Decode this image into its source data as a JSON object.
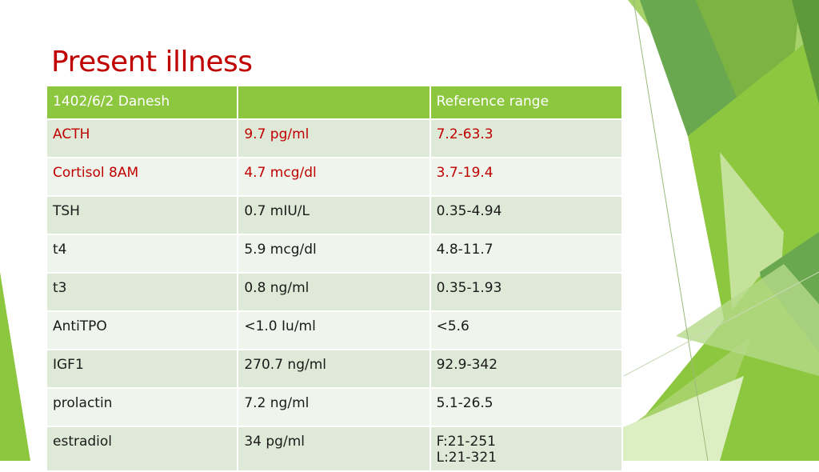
{
  "slide": {
    "title": "Present illness"
  },
  "table": {
    "header": [
      "1402/6/2 Danesh",
      "",
      "Reference range"
    ],
    "rows": [
      {
        "test": "ACTH",
        "value": "9.7  pg/ml",
        "range": "7.2-63.3",
        "abnormal": true
      },
      {
        "test": "Cortisol 8AM",
        "value": "4.7  mcg/dl",
        "range": "3.7-19.4",
        "abnormal": true
      },
      {
        "test": "TSH",
        "value": "0.7  mIU/L",
        "range": "0.35-4.94",
        "abnormal": false
      },
      {
        "test": "t4",
        "value": "5.9  mcg/dl",
        "range": "4.8-11.7",
        "abnormal": false
      },
      {
        "test": "t3",
        "value": "0.8  ng/ml",
        "range": "0.35-1.93",
        "abnormal": false
      },
      {
        "test": "AntiTPO",
        "value": "<1.0 Iu/ml",
        "range": "<5.6",
        "abnormal": false
      },
      {
        "test": "IGF1",
        "value": "270.7 ng/ml",
        "range": "92.9-342",
        "abnormal": false
      },
      {
        "test": "prolactin",
        "value": "7.2  ng/ml",
        "range": "5.1-26.5",
        "abnormal": false
      },
      {
        "test": "estradiol",
        "value": "34  pg/ml",
        "range": "F:21-251",
        "range2": "L:21-321",
        "abnormal": false
      }
    ]
  },
  "colors": {
    "title": "#c00000",
    "header_bg": "#8dc63f",
    "row_a": "#dfe9d7",
    "row_b": "#eff4ec",
    "abnormal_text": "#c00000"
  }
}
